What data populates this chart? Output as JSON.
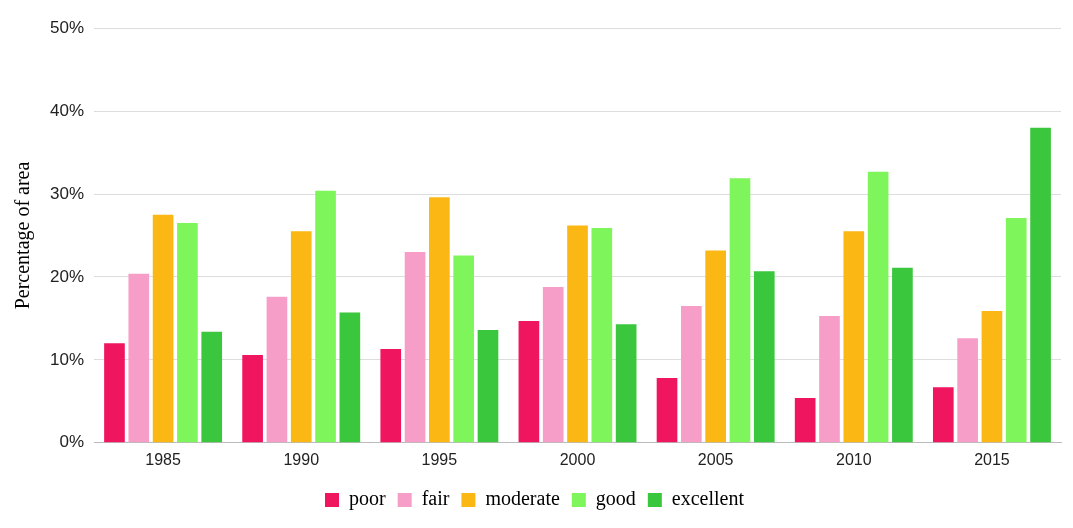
{
  "chart_data": {
    "type": "bar",
    "ylabel": "Percentage of area",
    "categories": [
      "1985",
      "1990",
      "1995",
      "2000",
      "2005",
      "2010",
      "2015"
    ],
    "series": [
      {
        "name": "poor",
        "color": "#f0155f",
        "values": [
          12.0,
          10.6,
          11.3,
          14.7,
          7.8,
          5.4,
          6.7
        ]
      },
      {
        "name": "fair",
        "color": "#f79ec8",
        "values": [
          20.4,
          17.6,
          23.0,
          18.8,
          16.5,
          15.3,
          12.6
        ]
      },
      {
        "name": "moderate",
        "color": "#fbb714",
        "values": [
          27.5,
          25.5,
          29.6,
          26.2,
          23.2,
          25.5,
          15.9
        ]
      },
      {
        "name": "good",
        "color": "#7ef55a",
        "values": [
          26.5,
          30.4,
          22.6,
          25.9,
          31.9,
          32.7,
          27.1
        ]
      },
      {
        "name": "excellent",
        "color": "#3ac63d",
        "values": [
          13.4,
          15.7,
          13.6,
          14.3,
          20.7,
          21.1,
          38.0
        ]
      }
    ],
    "ylim": [
      0,
      50
    ],
    "yticks": [
      {
        "value": 0,
        "label": "0%"
      },
      {
        "value": 10,
        "label": "10%"
      },
      {
        "value": 20,
        "label": "20%"
      },
      {
        "value": 30,
        "label": "30%"
      },
      {
        "value": 40,
        "label": "40%"
      },
      {
        "value": 50,
        "label": "50%"
      }
    ],
    "grid": "y",
    "legend": "bottom"
  }
}
